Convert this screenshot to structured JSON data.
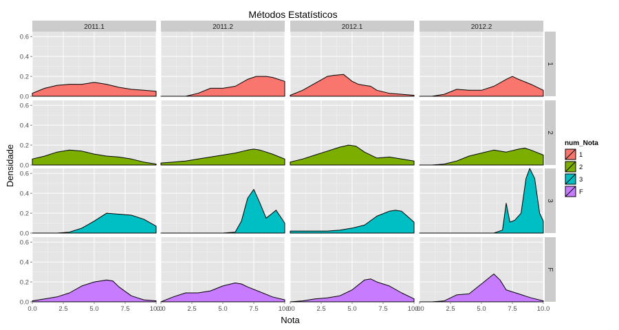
{
  "chart_data": {
    "type": "area",
    "title": "Métodos Estatísticos",
    "xlabel": "Nota",
    "ylabel": "Densidade",
    "xlim": [
      0,
      10
    ],
    "ylim": [
      0,
      0.65
    ],
    "x_ticks": [
      "0.0",
      "2.5",
      "5.0",
      "7.5",
      "10.0"
    ],
    "x_tick_values": [
      0,
      2.5,
      5,
      7.5,
      10
    ],
    "y_ticks": [
      "0.0",
      "0.2",
      "0.4",
      "0.6"
    ],
    "y_tick_values": [
      0,
      0.2,
      0.4,
      0.6
    ],
    "grid": true,
    "legend_position": "right",
    "legend_title": "num_Nota",
    "columns": [
      "2011.1",
      "2011.2",
      "2012.1",
      "2012.2"
    ],
    "rows": [
      "1",
      "2",
      "3",
      "F"
    ],
    "colors": {
      "1": "#F8766D",
      "2": "#7CAE00",
      "3": "#00BFC4",
      "F": "#C77CFF"
    },
    "legend": [
      {
        "label": "1",
        "color": "#F8766D"
      },
      {
        "label": "2",
        "color": "#7CAE00"
      },
      {
        "label": "3",
        "color": "#00BFC4"
      },
      {
        "label": "F",
        "color": "#C77CFF"
      }
    ],
    "panels": [
      {
        "row": "1",
        "col": "2011.1",
        "points": [
          [
            0,
            0.03
          ],
          [
            1,
            0.08
          ],
          [
            2,
            0.11
          ],
          [
            3,
            0.12
          ],
          [
            4,
            0.12
          ],
          [
            5,
            0.14
          ],
          [
            6,
            0.12
          ],
          [
            7,
            0.09
          ],
          [
            8,
            0.07
          ],
          [
            9,
            0.06
          ],
          [
            10,
            0.05
          ]
        ]
      },
      {
        "row": "1",
        "col": "2011.2",
        "points": [
          [
            0,
            0.0
          ],
          [
            1,
            0.0
          ],
          [
            2,
            0.0
          ],
          [
            3,
            0.03
          ],
          [
            4,
            0.08
          ],
          [
            5,
            0.08
          ],
          [
            6,
            0.1
          ],
          [
            7,
            0.17
          ],
          [
            7.7,
            0.2
          ],
          [
            8.5,
            0.2
          ],
          [
            9,
            0.19
          ],
          [
            10,
            0.15
          ]
        ]
      },
      {
        "row": "1",
        "col": "2012.1",
        "points": [
          [
            0,
            0.01
          ],
          [
            1,
            0.06
          ],
          [
            2,
            0.13
          ],
          [
            3,
            0.2
          ],
          [
            3.5,
            0.21
          ],
          [
            4.3,
            0.22
          ],
          [
            5,
            0.15
          ],
          [
            5.5,
            0.12
          ],
          [
            6,
            0.11
          ],
          [
            6.5,
            0.1
          ],
          [
            7,
            0.06
          ],
          [
            8,
            0.03
          ],
          [
            9,
            0.02
          ],
          [
            10,
            0.01
          ]
        ]
      },
      {
        "row": "1",
        "col": "2012.2",
        "points": [
          [
            0,
            0.0
          ],
          [
            1,
            0.0
          ],
          [
            2,
            0.02
          ],
          [
            3,
            0.07
          ],
          [
            4,
            0.06
          ],
          [
            5,
            0.06
          ],
          [
            6,
            0.1
          ],
          [
            7,
            0.17
          ],
          [
            7.5,
            0.2
          ],
          [
            8,
            0.17
          ],
          [
            9,
            0.12
          ],
          [
            10,
            0.06
          ]
        ]
      },
      {
        "row": "2",
        "col": "2011.1",
        "points": [
          [
            0,
            0.06
          ],
          [
            1,
            0.09
          ],
          [
            2,
            0.13
          ],
          [
            3,
            0.15
          ],
          [
            4,
            0.14
          ],
          [
            5,
            0.11
          ],
          [
            6,
            0.09
          ],
          [
            7,
            0.08
          ],
          [
            8,
            0.06
          ],
          [
            9,
            0.03
          ],
          [
            10,
            0.01
          ]
        ]
      },
      {
        "row": "2",
        "col": "2011.2",
        "points": [
          [
            0,
            0.02
          ],
          [
            1,
            0.03
          ],
          [
            2,
            0.04
          ],
          [
            3,
            0.06
          ],
          [
            4,
            0.08
          ],
          [
            5,
            0.1
          ],
          [
            6,
            0.12
          ],
          [
            7,
            0.15
          ],
          [
            7.5,
            0.16
          ],
          [
            8,
            0.15
          ],
          [
            9,
            0.11
          ],
          [
            10,
            0.06
          ]
        ]
      },
      {
        "row": "2",
        "col": "2012.1",
        "points": [
          [
            0,
            0.03
          ],
          [
            1,
            0.06
          ],
          [
            2,
            0.1
          ],
          [
            3,
            0.14
          ],
          [
            4,
            0.18
          ],
          [
            4.7,
            0.2
          ],
          [
            5.3,
            0.19
          ],
          [
            6,
            0.13
          ],
          [
            7,
            0.07
          ],
          [
            8,
            0.08
          ],
          [
            9,
            0.06
          ],
          [
            10,
            0.04
          ]
        ]
      },
      {
        "row": "2",
        "col": "2012.2",
        "points": [
          [
            0,
            0.0
          ],
          [
            1,
            0.0
          ],
          [
            2,
            0.01
          ],
          [
            3,
            0.04
          ],
          [
            4,
            0.09
          ],
          [
            5,
            0.12
          ],
          [
            6,
            0.15
          ],
          [
            7,
            0.13
          ],
          [
            8,
            0.16
          ],
          [
            8.5,
            0.17
          ],
          [
            9,
            0.15
          ],
          [
            10,
            0.1
          ]
        ]
      },
      {
        "row": "3",
        "col": "2011.1",
        "points": [
          [
            0,
            0.0
          ],
          [
            1,
            0.0
          ],
          [
            2,
            0.0
          ],
          [
            3,
            0.01
          ],
          [
            4,
            0.05
          ],
          [
            5,
            0.12
          ],
          [
            6,
            0.2
          ],
          [
            7,
            0.19
          ],
          [
            8,
            0.18
          ],
          [
            9,
            0.14
          ],
          [
            10,
            0.07
          ]
        ]
      },
      {
        "row": "3",
        "col": "2011.2",
        "points": [
          [
            0,
            0.0
          ],
          [
            1,
            0.0
          ],
          [
            2,
            0.0
          ],
          [
            3,
            0.0
          ],
          [
            4,
            0.0
          ],
          [
            5,
            0.0
          ],
          [
            6,
            0.01
          ],
          [
            6.5,
            0.12
          ],
          [
            7,
            0.35
          ],
          [
            7.5,
            0.44
          ],
          [
            8,
            0.3
          ],
          [
            8.5,
            0.15
          ],
          [
            9,
            0.2
          ],
          [
            9.3,
            0.23
          ],
          [
            10,
            0.1
          ]
        ]
      },
      {
        "row": "3",
        "col": "2012.1",
        "points": [
          [
            0,
            0.02
          ],
          [
            1,
            0.02
          ],
          [
            2,
            0.02
          ],
          [
            3,
            0.02
          ],
          [
            4,
            0.03
          ],
          [
            5,
            0.05
          ],
          [
            6,
            0.08
          ],
          [
            7,
            0.17
          ],
          [
            8,
            0.22
          ],
          [
            8.5,
            0.23
          ],
          [
            9,
            0.22
          ],
          [
            10,
            0.11
          ]
        ]
      },
      {
        "row": "3",
        "col": "2012.2",
        "points": [
          [
            0,
            0.0
          ],
          [
            1,
            0.0
          ],
          [
            2,
            0.0
          ],
          [
            3,
            0.0
          ],
          [
            4,
            0.0
          ],
          [
            5,
            0.0
          ],
          [
            6,
            0.0
          ],
          [
            6.7,
            0.03
          ],
          [
            7,
            0.3
          ],
          [
            7.3,
            0.11
          ],
          [
            7.7,
            0.13
          ],
          [
            8.2,
            0.2
          ],
          [
            8.6,
            0.55
          ],
          [
            8.9,
            0.65
          ],
          [
            9.3,
            0.55
          ],
          [
            9.7,
            0.2
          ],
          [
            10,
            0.12
          ]
        ]
      },
      {
        "row": "F",
        "col": "2011.1",
        "points": [
          [
            0,
            0.01
          ],
          [
            1,
            0.03
          ],
          [
            2,
            0.05
          ],
          [
            3,
            0.09
          ],
          [
            4,
            0.16
          ],
          [
            5,
            0.2
          ],
          [
            6,
            0.22
          ],
          [
            6.5,
            0.21
          ],
          [
            7,
            0.15
          ],
          [
            8,
            0.06
          ],
          [
            9,
            0.02
          ],
          [
            10,
            0.01
          ]
        ]
      },
      {
        "row": "F",
        "col": "2011.2",
        "points": [
          [
            0,
            0.0
          ],
          [
            1,
            0.05
          ],
          [
            2,
            0.09
          ],
          [
            3,
            0.09
          ],
          [
            4,
            0.11
          ],
          [
            5,
            0.16
          ],
          [
            6,
            0.19
          ],
          [
            6.5,
            0.18
          ],
          [
            7,
            0.15
          ],
          [
            8,
            0.1
          ],
          [
            9,
            0.05
          ],
          [
            10,
            0.02
          ]
        ]
      },
      {
        "row": "F",
        "col": "2012.1",
        "points": [
          [
            0,
            0.0
          ],
          [
            1,
            0.01
          ],
          [
            2,
            0.03
          ],
          [
            3,
            0.04
          ],
          [
            4,
            0.06
          ],
          [
            5,
            0.12
          ],
          [
            6,
            0.22
          ],
          [
            6.5,
            0.23
          ],
          [
            7,
            0.2
          ],
          [
            8,
            0.16
          ],
          [
            9,
            0.09
          ],
          [
            10,
            0.03
          ]
        ]
      },
      {
        "row": "F",
        "col": "2012.2",
        "points": [
          [
            0,
            0.0
          ],
          [
            1,
            0.0
          ],
          [
            2,
            0.01
          ],
          [
            3,
            0.07
          ],
          [
            4,
            0.08
          ],
          [
            5,
            0.18
          ],
          [
            6,
            0.28
          ],
          [
            6.5,
            0.22
          ],
          [
            7,
            0.12
          ],
          [
            8,
            0.08
          ],
          [
            9,
            0.04
          ],
          [
            10,
            0.01
          ]
        ]
      }
    ]
  }
}
